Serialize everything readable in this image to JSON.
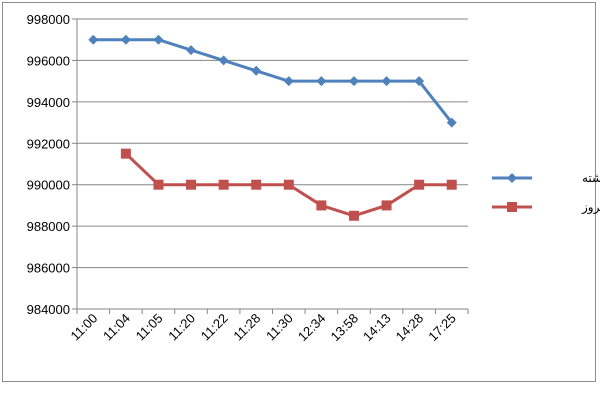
{
  "chart_data": {
    "type": "line",
    "categories": [
      "11:00",
      "11:04",
      "11:05",
      "11:20",
      "11:22",
      "11:28",
      "11:30",
      "12:34",
      "13:58",
      "14:13",
      "14:28",
      "17:25"
    ],
    "y_ticks": [
      "984000",
      "986000",
      "988000",
      "990000",
      "992000",
      "994000",
      "996000",
      "998000"
    ],
    "ylim": [
      984000,
      998000
    ],
    "grid": true,
    "legend_position": "right",
    "series": [
      {
        "name": "روز گذشته",
        "color": "#4f81bd",
        "marker": "diamond",
        "values": [
          997000,
          997000,
          997000,
          996500,
          996000,
          995500,
          995000,
          995000,
          995000,
          995000,
          995000,
          993000
        ]
      },
      {
        "name": "امروز",
        "color": "#c0504d",
        "marker": "square",
        "values": [
          null,
          991500,
          990000,
          990000,
          990000,
          990000,
          990000,
          989000,
          988500,
          989000,
          990000,
          990000
        ]
      }
    ]
  }
}
